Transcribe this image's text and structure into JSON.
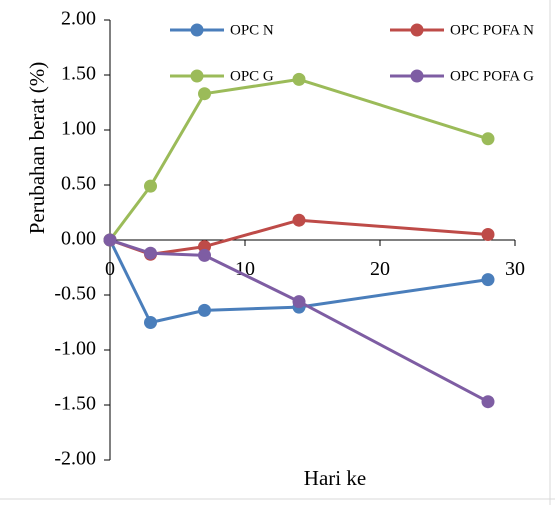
{
  "chart_data": {
    "type": "line",
    "xlabel": "Hari ke",
    "ylabel": "Perubahan berat (%)",
    "xlim": [
      0,
      30
    ],
    "ylim": [
      -2.0,
      2.0
    ],
    "x_ticks": [
      "0",
      "10",
      "20",
      "30"
    ],
    "x_tick_values": [
      0,
      10,
      20,
      30
    ],
    "y_ticks": [
      "2.00",
      "1.50",
      "1.00",
      "0.50",
      "0.00",
      "-0.50",
      "-1.00",
      "-1.50",
      "-2.00"
    ],
    "y_tick_values": [
      2.0,
      1.5,
      1.0,
      0.5,
      0.0,
      -0.5,
      -1.0,
      -1.5,
      -2.0
    ],
    "grid": false,
    "legend_position": "top",
    "series": [
      {
        "name": "OPC N",
        "color": "#4a7ebb",
        "x": [
          0,
          3,
          7,
          14,
          28
        ],
        "y": [
          0.0,
          -0.75,
          -0.64,
          -0.61,
          -0.36
        ]
      },
      {
        "name": "OPC POFA N",
        "color": "#be4b48",
        "x": [
          0,
          3,
          7,
          14,
          28
        ],
        "y": [
          0.0,
          -0.13,
          -0.06,
          0.18,
          0.05
        ]
      },
      {
        "name": "OPC  G",
        "color": "#9bbb59",
        "x": [
          0,
          3,
          7,
          14,
          28
        ],
        "y": [
          0.0,
          0.49,
          1.33,
          1.46,
          0.92
        ]
      },
      {
        "name": "OPC POFA G",
        "color": "#7e5da3",
        "x": [
          0,
          3,
          7,
          14,
          28
        ],
        "y": [
          0.0,
          -0.12,
          -0.14,
          -0.56,
          -1.47
        ]
      }
    ]
  }
}
